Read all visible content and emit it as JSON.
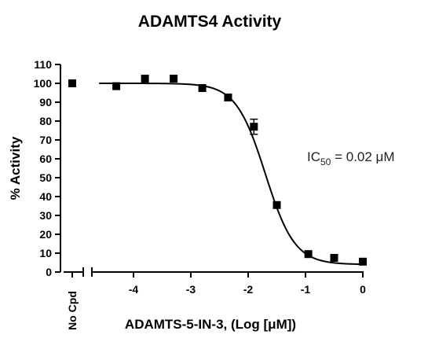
{
  "chart_data": {
    "type": "scatter",
    "title": "ADAMTS4 Activity",
    "xlabel": "ADAMTS-5-IN-3, (Log [μM])",
    "ylabel": "% Activity",
    "xlim": [
      -4.6,
      0
    ],
    "ylim": [
      0,
      110
    ],
    "x_ticks": [
      "-4",
      "-3",
      "-2",
      "-1",
      "0"
    ],
    "y_ticks": [
      "0",
      "10",
      "20",
      "30",
      "40",
      "50",
      "60",
      "70",
      "80",
      "90",
      "100",
      "110"
    ],
    "no_cpd_label": "No Cpd",
    "no_cpd_value": 100,
    "annotation": {
      "prefix": "IC",
      "subscript": "50",
      "suffix": " = 0.02 μM"
    },
    "series": [
      {
        "x": [
          -4.3,
          -3.8,
          -3.3,
          -2.8,
          -2.35,
          -1.9,
          -1.5,
          -0.95,
          -0.5,
          0
        ],
        "y": [
          98.5,
          102.5,
          102.5,
          97.5,
          92.5,
          77,
          35.5,
          9.5,
          7.5,
          5.5
        ],
        "error": [
          0,
          0,
          0,
          0,
          0,
          4,
          0,
          0,
          0,
          0
        ]
      }
    ],
    "fit_curve": {
      "model": "4PL",
      "top": 100,
      "bottom": 4,
      "log_ic50": -1.7,
      "hill_slope": 1.7
    },
    "grid": false,
    "legend": "none"
  }
}
